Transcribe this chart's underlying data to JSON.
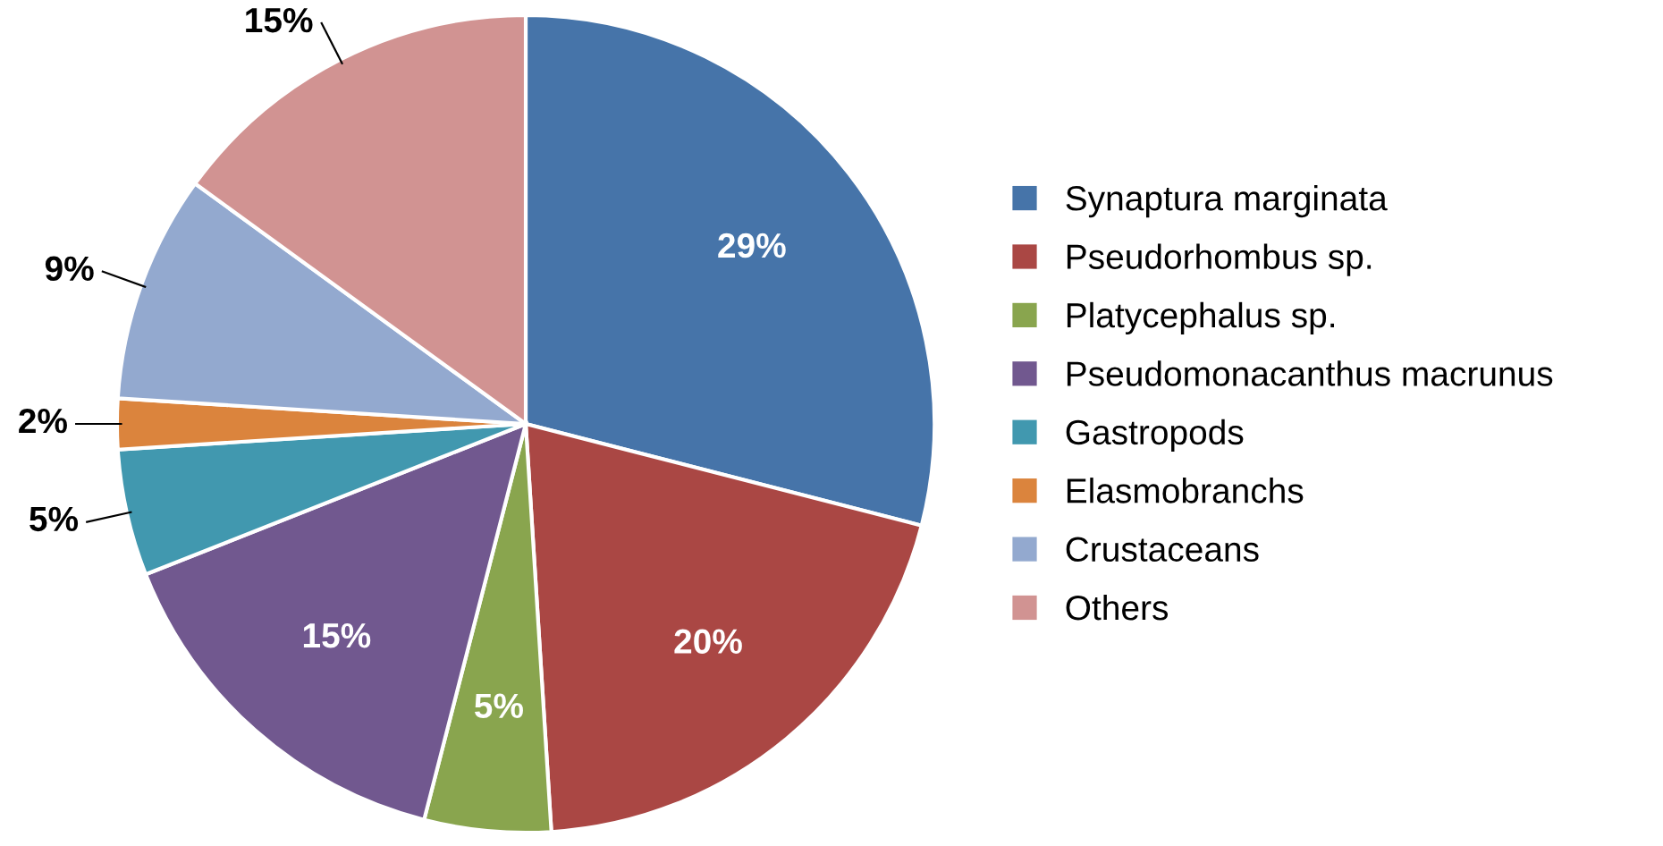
{
  "chart_data": {
    "type": "pie",
    "categories": [
      "Synaptura marginata",
      "Pseudorhombus sp.",
      "Platycephalus sp.",
      "Pseudomonacanthus macrunus",
      "Gastropods",
      "Elasmobranchs",
      "Crustaceans",
      "Others"
    ],
    "values": [
      29,
      20,
      5,
      15,
      5,
      2,
      9,
      15
    ],
    "colors": [
      "#4674a9",
      "#aa4744",
      "#89a54e",
      "#71588f",
      "#4198af",
      "#db843d",
      "#93a9cf",
      "#d19392"
    ],
    "value_labels": [
      "29%",
      "20%",
      "5%",
      "15%",
      "5%",
      "2%",
      "9%",
      "15%"
    ],
    "legend": "right"
  }
}
